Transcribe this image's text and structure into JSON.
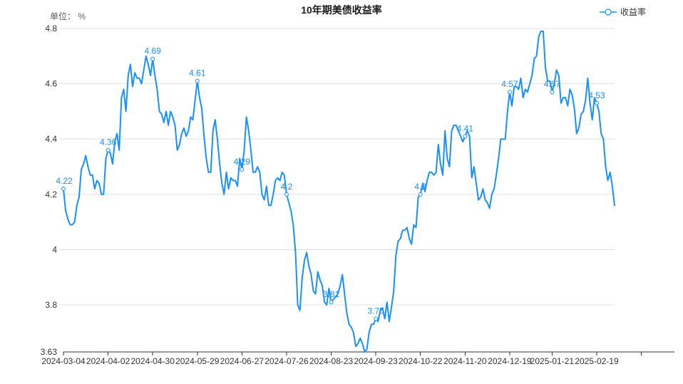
{
  "title": "10年期美债收益率",
  "unit_label": "单位： %",
  "legend": {
    "series_label": "收益率",
    "marker_icon": "line-circle-marker-icon"
  },
  "colors": {
    "line": "#1890ff",
    "annotation_label": "#1890ff",
    "axis_line": "#333333",
    "grid_line": "#e0e0e0",
    "tick_text": "#333333",
    "muted_text": "#5e5e5e",
    "background": "#ffffff"
  },
  "chart_data": {
    "type": "line",
    "title": "10年期美债收益率",
    "ylabel": "单位： %",
    "series_name": "收益率",
    "ylim": [
      3.63,
      4.8
    ],
    "grid_on": true,
    "legend_position": "top-right",
    "y_ticks": [
      {
        "label": "4.8",
        "value": 4.8
      },
      {
        "label": "4.6",
        "value": 4.6
      },
      {
        "label": "4.4",
        "value": 4.4
      },
      {
        "label": "4.2",
        "value": 4.2
      },
      {
        "label": "4",
        "value": 4.0
      },
      {
        "label": "3.8",
        "value": 3.8
      },
      {
        "label": "3.63",
        "value": 3.63
      }
    ],
    "x_tick_labels": [
      "2024-03-04",
      "2024-04-02",
      "2024-04-30",
      "2024-05-29",
      "2024-06-27",
      "2024-07-26",
      "2024-08-23",
      "2024-09-23",
      "2024-10-22",
      "2024-11-20",
      "2024-12-19",
      "2025-01-21",
      "2025-02-19"
    ],
    "x_tick_indices": [
      0,
      20,
      40,
      60,
      80,
      100,
      120,
      140,
      160,
      180,
      200,
      219,
      239
    ],
    "annotations": [
      {
        "index": 0,
        "label": "4.22",
        "value": 4.22
      },
      {
        "index": 20,
        "label": "4.36",
        "value": 4.36
      },
      {
        "index": 40,
        "label": "4.69",
        "value": 4.69
      },
      {
        "index": 60,
        "label": "4.61",
        "value": 4.61
      },
      {
        "index": 80,
        "label": "4.29",
        "value": 4.29
      },
      {
        "index": 100,
        "label": "4.2",
        "value": 4.2
      },
      {
        "index": 120,
        "label": "3.81",
        "value": 3.81
      },
      {
        "index": 140,
        "label": "3.75",
        "value": 3.75
      },
      {
        "index": 160,
        "label": "4.2",
        "value": 4.2
      },
      {
        "index": 180,
        "label": "4.41",
        "value": 4.41
      },
      {
        "index": 200,
        "label": "4.57",
        "value": 4.57
      },
      {
        "index": 219,
        "label": "4.57",
        "value": 4.57
      },
      {
        "index": 239,
        "label": "4.53",
        "value": 4.53
      }
    ],
    "values": [
      4.22,
      4.14,
      4.11,
      4.09,
      4.09,
      4.1,
      4.16,
      4.19,
      4.29,
      4.31,
      4.34,
      4.3,
      4.27,
      4.27,
      4.22,
      4.25,
      4.24,
      4.2,
      4.2,
      4.33,
      4.36,
      4.35,
      4.31,
      4.39,
      4.42,
      4.36,
      4.55,
      4.58,
      4.5,
      4.63,
      4.67,
      4.59,
      4.64,
      4.62,
      4.62,
      4.6,
      4.65,
      4.7,
      4.67,
      4.63,
      4.69,
      4.63,
      4.58,
      4.5,
      4.49,
      4.46,
      4.5,
      4.45,
      4.5,
      4.48,
      4.45,
      4.36,
      4.38,
      4.42,
      4.44,
      4.41,
      4.43,
      4.48,
      4.47,
      4.54,
      4.61,
      4.55,
      4.51,
      4.41,
      4.33,
      4.28,
      4.28,
      4.43,
      4.47,
      4.4,
      4.31,
      4.24,
      4.2,
      4.28,
      4.22,
      4.26,
      4.25,
      4.25,
      4.23,
      4.33,
      4.29,
      4.36,
      4.48,
      4.43,
      4.36,
      4.28,
      4.28,
      4.3,
      4.28,
      4.2,
      4.18,
      4.23,
      4.16,
      4.16,
      4.2,
      4.25,
      4.26,
      4.25,
      4.28,
      4.27,
      4.2,
      4.17,
      4.14,
      4.09,
      3.99,
      3.8,
      3.78,
      3.9,
      3.96,
      3.99,
      3.94,
      3.91,
      3.85,
      3.84,
      3.92,
      3.89,
      3.87,
      3.81,
      3.8,
      3.86,
      3.81,
      3.82,
      3.83,
      3.84,
      3.87,
      3.91,
      3.84,
      3.77,
      3.73,
      3.72,
      3.7,
      3.65,
      3.66,
      3.68,
      3.66,
      3.63,
      3.64,
      3.7,
      3.73,
      3.73,
      3.75,
      3.74,
      3.78,
      3.79,
      3.75,
      3.81,
      3.74,
      3.79,
      3.85,
      3.98,
      4.03,
      4.04,
      4.07,
      4.07,
      4.08,
      4.04,
      4.02,
      4.09,
      4.08,
      4.19,
      4.2,
      4.24,
      4.21,
      4.25,
      4.28,
      4.28,
      4.27,
      4.28,
      4.38,
      4.31,
      4.27,
      4.43,
      4.33,
      4.3,
      4.43,
      4.45,
      4.45,
      4.43,
      4.41,
      4.39,
      4.41,
      4.43,
      4.41,
      4.26,
      4.3,
      4.24,
      4.18,
      4.19,
      4.22,
      4.18,
      4.17,
      4.15,
      4.2,
      4.22,
      4.27,
      4.33,
      4.4,
      4.4,
      4.4,
      4.5,
      4.57,
      4.52,
      4.59,
      4.59,
      4.58,
      4.62,
      4.55,
      4.58,
      4.57,
      4.6,
      4.63,
      4.69,
      4.7,
      4.77,
      4.79,
      4.79,
      4.66,
      4.61,
      4.61,
      4.57,
      4.6,
      4.65,
      4.63,
      4.53,
      4.55,
      4.55,
      4.52,
      4.58,
      4.56,
      4.51,
      4.42,
      4.44,
      4.49,
      4.5,
      4.54,
      4.62,
      4.53,
      4.47,
      4.55,
      4.53,
      4.5,
      4.42,
      4.4,
      4.3,
      4.25,
      4.28,
      4.23,
      4.16
    ]
  }
}
